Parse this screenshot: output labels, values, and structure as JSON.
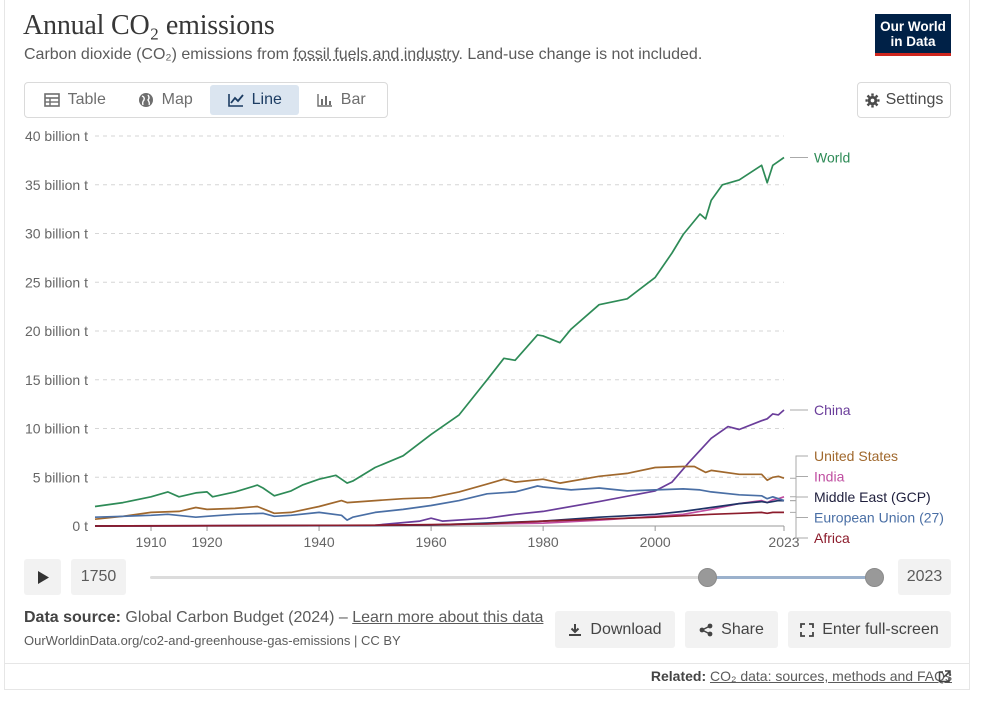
{
  "header": {
    "title": "Annual CO₂ emissions",
    "subtitle_pre": "Carbon dioxide (CO₂) emissions from ",
    "subtitle_link": "fossil fuels and industry",
    "subtitle_post": ". Land-use change is not included.",
    "logo_line1": "Our World",
    "logo_line2": "in Data"
  },
  "tabs": [
    {
      "label": "Table",
      "icon": "table-icon"
    },
    {
      "label": "Map",
      "icon": "globe-icon"
    },
    {
      "label": "Line",
      "icon": "line-chart-icon",
      "active": true
    },
    {
      "label": "Bar",
      "icon": "bar-chart-icon"
    }
  ],
  "settings_label": "Settings",
  "chart_data": {
    "type": "line",
    "title": "Annual CO₂ emissions",
    "ylabel": "",
    "xlabel": "",
    "ylim": [
      0,
      40
    ],
    "xlim": [
      1900,
      2023
    ],
    "y_ticks": [
      0,
      5,
      10,
      15,
      20,
      25,
      30,
      35,
      40
    ],
    "y_tick_labels": [
      "0 t",
      "5 billion t",
      "10 billion t",
      "15 billion t",
      "20 billion t",
      "25 billion t",
      "30 billion t",
      "35 billion t",
      "40 billion t"
    ],
    "x_ticks": [
      1910,
      1920,
      1940,
      1960,
      1980,
      2000,
      2023
    ],
    "x_tick_labels": [
      "1910",
      "1920",
      "1940",
      "1960",
      "1980",
      "2000",
      "2023"
    ],
    "grid": true,
    "unit_note": "values in billion tonnes",
    "series": [
      {
        "name": "World",
        "color": "#2e8b57",
        "x": [
          1900,
          1905,
          1910,
          1913,
          1915,
          1918,
          1920,
          1921,
          1925,
          1929,
          1930,
          1932,
          1935,
          1937,
          1940,
          1943,
          1945,
          1946,
          1950,
          1955,
          1960,
          1965,
          1970,
          1973,
          1975,
          1979,
          1980,
          1983,
          1985,
          1990,
          1995,
          2000,
          2003,
          2005,
          2008,
          2009,
          2010,
          2012,
          2015,
          2019,
          2020,
          2021,
          2022,
          2023
        ],
        "values": [
          2.0,
          2.4,
          3.0,
          3.5,
          3.0,
          3.4,
          3.5,
          3.0,
          3.5,
          4.2,
          3.9,
          3.1,
          3.6,
          4.2,
          4.8,
          5.2,
          4.4,
          4.6,
          6.0,
          7.2,
          9.4,
          11.4,
          15.0,
          17.2,
          17.0,
          19.6,
          19.5,
          18.8,
          20.2,
          22.7,
          23.3,
          25.5,
          28.0,
          29.9,
          32.0,
          31.5,
          33.4,
          35.0,
          35.5,
          37.0,
          35.2,
          37.0,
          37.4,
          37.8
        ]
      },
      {
        "name": "China",
        "color": "#6a3d9a",
        "x": [
          1900,
          1950,
          1958,
          1960,
          1962,
          1970,
          1975,
          1980,
          1990,
          2000,
          2003,
          2006,
          2010,
          2013,
          2015,
          2019,
          2020,
          2021,
          2022,
          2023
        ],
        "values": [
          0.0,
          0.08,
          0.5,
          0.8,
          0.5,
          0.8,
          1.2,
          1.5,
          2.5,
          3.6,
          4.5,
          6.5,
          9.0,
          10.2,
          9.9,
          10.8,
          11.0,
          11.5,
          11.4,
          11.9
        ],
        "label": "China"
      },
      {
        "name": "United States",
        "color": "#a0682d",
        "x": [
          1900,
          1905,
          1910,
          1915,
          1918,
          1920,
          1925,
          1929,
          1932,
          1935,
          1940,
          1944,
          1945,
          1950,
          1955,
          1960,
          1965,
          1970,
          1973,
          1975,
          1980,
          1983,
          1990,
          1995,
          2000,
          2005,
          2007,
          2009,
          2010,
          2015,
          2019,
          2020,
          2021,
          2022,
          2023
        ],
        "values": [
          0.7,
          1.0,
          1.4,
          1.5,
          1.9,
          1.7,
          1.8,
          2.0,
          1.3,
          1.4,
          2.0,
          2.6,
          2.4,
          2.6,
          2.8,
          2.9,
          3.5,
          4.3,
          4.8,
          4.5,
          4.8,
          4.4,
          5.1,
          5.4,
          6.0,
          6.1,
          6.1,
          5.5,
          5.7,
          5.3,
          5.3,
          4.7,
          5.0,
          5.1,
          4.9
        ]
      },
      {
        "name": "India",
        "color": "#c04fa1",
        "x": [
          1900,
          1950,
          1960,
          1970,
          1980,
          1990,
          2000,
          2005,
          2010,
          2015,
          2019,
          2020,
          2021,
          2022,
          2023
        ],
        "values": [
          0.0,
          0.07,
          0.12,
          0.2,
          0.3,
          0.6,
          1.0,
          1.2,
          1.7,
          2.3,
          2.6,
          2.4,
          2.7,
          2.8,
          3.0
        ]
      },
      {
        "name": "Middle East (GCP)",
        "color": "#1f3366",
        "x": [
          1900,
          1950,
          1960,
          1970,
          1980,
          1990,
          2000,
          2005,
          2010,
          2015,
          2019,
          2020,
          2021,
          2022,
          2023
        ],
        "values": [
          0.0,
          0.05,
          0.1,
          0.3,
          0.5,
          0.9,
          1.2,
          1.5,
          1.9,
          2.3,
          2.5,
          2.4,
          2.5,
          2.6,
          2.6
        ]
      },
      {
        "name": "European Union (27)",
        "color": "#4a6fa5",
        "x": [
          1900,
          1905,
          1910,
          1913,
          1918,
          1920,
          1925,
          1930,
          1932,
          1935,
          1940,
          1944,
          1945,
          1946,
          1950,
          1955,
          1960,
          1965,
          1970,
          1975,
          1979,
          1980,
          1985,
          1990,
          1995,
          2000,
          2005,
          2008,
          2010,
          2015,
          2019,
          2020,
          2021,
          2022,
          2023
        ],
        "values": [
          0.9,
          1.0,
          1.1,
          1.2,
          0.9,
          1.0,
          1.2,
          1.3,
          1.0,
          1.1,
          1.4,
          1.1,
          0.6,
          0.9,
          1.4,
          1.7,
          2.1,
          2.6,
          3.3,
          3.5,
          4.1,
          4.0,
          3.7,
          3.9,
          3.6,
          3.7,
          3.8,
          3.7,
          3.5,
          3.2,
          3.1,
          2.8,
          3.0,
          2.8,
          2.6
        ]
      },
      {
        "name": "Africa",
        "color": "#8c1c2c",
        "x": [
          1900,
          1950,
          1960,
          1970,
          1980,
          1990,
          2000,
          2010,
          2015,
          2019,
          2020,
          2021,
          2022,
          2023
        ],
        "values": [
          0.0,
          0.08,
          0.14,
          0.23,
          0.5,
          0.7,
          0.9,
          1.2,
          1.3,
          1.4,
          1.3,
          1.4,
          1.4,
          1.4
        ]
      }
    ],
    "end_labels": [
      "World",
      "China",
      "United States",
      "India",
      "Middle East (GCP)",
      "European Union (27)",
      "Africa"
    ]
  },
  "timeline": {
    "start_year": "1750",
    "end_year": "2023",
    "range_start_fraction": 0.77,
    "range_end_fraction": 1.0
  },
  "footer": {
    "source_label": "Data source:",
    "source_text": "Global Carbon Budget (2024) – ",
    "learn_more": "Learn more about this data",
    "url": "OurWorldinData.org/co2-and-greenhouse-gas-emissions | CC BY",
    "download_label": "Download",
    "share_label": "Share",
    "fullscreen_label": "Enter full-screen",
    "related_label": "Related:",
    "related_link": "CO₂ data: sources, methods and FAQs"
  }
}
